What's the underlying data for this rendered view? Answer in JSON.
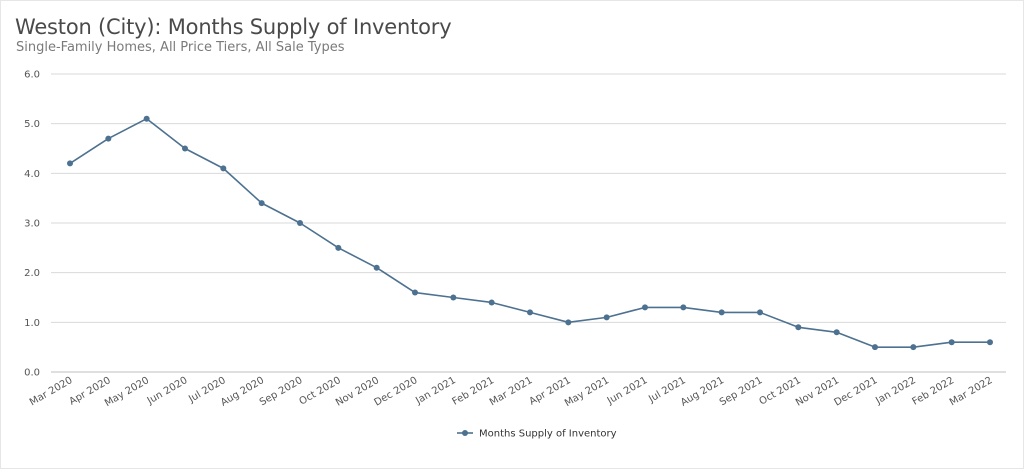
{
  "chart_data": {
    "type": "line",
    "title": "Weston (City): Months Supply of Inventory",
    "subtitle": "Single-Family Homes, All Price Tiers, All Sale Types",
    "xlabel": "",
    "ylabel": "",
    "ylim": [
      0,
      6
    ],
    "y_ticks": [
      "0.0",
      "1.0",
      "2.0",
      "3.0",
      "4.0",
      "5.0",
      "6.0"
    ],
    "grid": true,
    "legend_position": "bottom-center",
    "categories": [
      "Mar 2020",
      "Apr 2020",
      "May 2020",
      "Jun 2020",
      "Jul 2020",
      "Aug 2020",
      "Sep 2020",
      "Oct 2020",
      "Nov 2020",
      "Dec 2020",
      "Jan 2021",
      "Feb 2021",
      "Mar 2021",
      "Apr 2021",
      "May 2021",
      "Jun 2021",
      "Jul 2021",
      "Aug 2021",
      "Sep 2021",
      "Oct 2021",
      "Nov 2021",
      "Dec 2021",
      "Jan 2022",
      "Feb 2022",
      "Mar 2022"
    ],
    "series": [
      {
        "name": "Months Supply of Inventory",
        "color": "#4d7190",
        "values": [
          4.2,
          4.7,
          5.1,
          4.5,
          4.1,
          3.4,
          3.0,
          2.5,
          2.1,
          1.6,
          1.5,
          1.4,
          1.2,
          1.0,
          1.1,
          1.3,
          1.3,
          1.2,
          1.2,
          0.9,
          0.8,
          0.5,
          0.5,
          0.6,
          0.6
        ]
      }
    ]
  },
  "colors": {
    "grid": "#d9d9d9",
    "axis": "#bfbfbf"
  }
}
